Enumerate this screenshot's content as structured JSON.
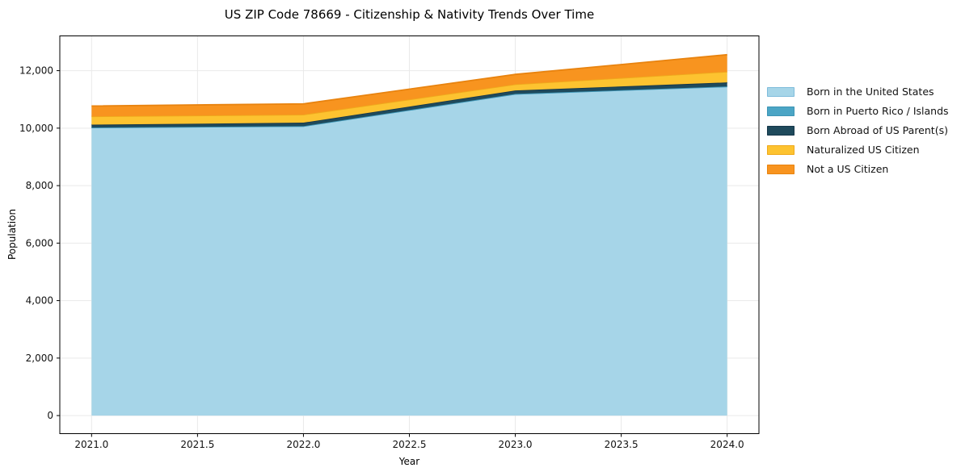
{
  "chart_data": {
    "type": "area",
    "stacked": true,
    "title": "US ZIP Code 78669 - Citizenship & Nativity Trends Over Time",
    "xlabel": "Year",
    "ylabel": "Population",
    "x": [
      2021,
      2022,
      2023,
      2024
    ],
    "series": [
      {
        "name": "Born in the United States",
        "color": "#a6d5e8",
        "edge": "#7fbcdb",
        "values": [
          10020,
          10070,
          11190,
          11450
        ]
      },
      {
        "name": "Born in Puerto Rico / Islands",
        "color": "#4ba5c5",
        "edge": "#3d95b5",
        "values": [
          0,
          0,
          0,
          0
        ]
      },
      {
        "name": "Born Abroad of US Parent(s)",
        "color": "#1f4a5c",
        "edge": "#16374a",
        "values": [
          100,
          120,
          120,
          140
        ]
      },
      {
        "name": "Naturalized US Citizen",
        "color": "#fdc330",
        "edge": "#efa91c",
        "values": [
          290,
          280,
          215,
          375
        ]
      },
      {
        "name": "Not a US Citizen",
        "color": "#f8941f",
        "edge": "#e8830f",
        "values": [
          360,
          375,
          345,
          590
        ]
      }
    ],
    "totals": [
      10770,
      10845,
      11870,
      12555
    ],
    "xlim": [
      2020.85,
      2024.15
    ],
    "ylim": [
      -629,
      13209
    ],
    "xticks": {
      "values": [
        2021.0,
        2021.5,
        2022.0,
        2022.5,
        2023.0,
        2023.5,
        2024.0
      ],
      "labels": [
        "2021.0",
        "2021.5",
        "2022.0",
        "2022.5",
        "2023.0",
        "2023.5",
        "2024.0"
      ]
    },
    "yticks": {
      "values": [
        0,
        2000,
        4000,
        6000,
        8000,
        10000,
        12000
      ],
      "labels": [
        "0",
        "2,000",
        "4,000",
        "6,000",
        "8,000",
        "10,000",
        "12,000"
      ]
    },
    "grid": true,
    "legend_position": "right"
  },
  "colors": {
    "background": "#ffffff",
    "grid": "#e9e9e9",
    "frame": "#000000",
    "tick": "#000000",
    "tick_label": "#111111"
  }
}
